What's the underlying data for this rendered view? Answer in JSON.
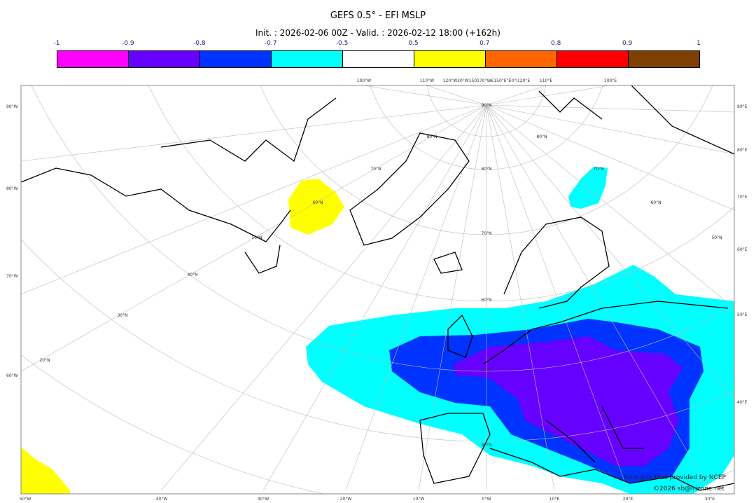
{
  "title": "GEFS 0.5° - EFI MSLP",
  "subtitle": "Init. : 2026-02-06 00Z - Valid. : 2026-02-12 18:00 (+162h)",
  "colorbar": {
    "ticks": [
      "-1",
      "-0.9",
      "-0.8",
      "-0.7",
      "-0.5",
      "0.5",
      "0.7",
      "0.8",
      "0.9",
      "1"
    ],
    "colors": [
      "#ff00ff",
      "#6600ff",
      "#0033ff",
      "#00ffff",
      "#ffffff",
      "#ffff00",
      "#ff6600",
      "#ff0000",
      "#7f3f00"
    ]
  },
  "map": {
    "left_labels": [
      "90°W",
      "80°W",
      "70°W",
      "60°W"
    ],
    "right_labels": [
      "90°E",
      "80°E",
      "70°E",
      "60°E",
      "50°E",
      "40°E"
    ],
    "bottom_labels": [
      "50°W",
      "40°W",
      "30°W",
      "20°W",
      "10°W",
      "0°W",
      "10°E",
      "20°E",
      "30°E"
    ],
    "top_labels": [
      "100°W",
      "110°W",
      "120°W30°W150170°W€150°E°E0°I120°E",
      "110°E",
      "100°E"
    ],
    "lat_labels": [
      "90°N",
      "80°N",
      "80°N",
      "70°N",
      "80°N",
      "60°N",
      "50°N",
      "70°N",
      "40°N",
      "30°N",
      "20°N",
      "60°N",
      "50°N",
      "40°N",
      "70°N",
      "60°N",
      "50°N"
    ]
  },
  "credits": {
    "line1": "from grib files provided by NCEP",
    "line2": "©2026 sb@irizone.net"
  }
}
